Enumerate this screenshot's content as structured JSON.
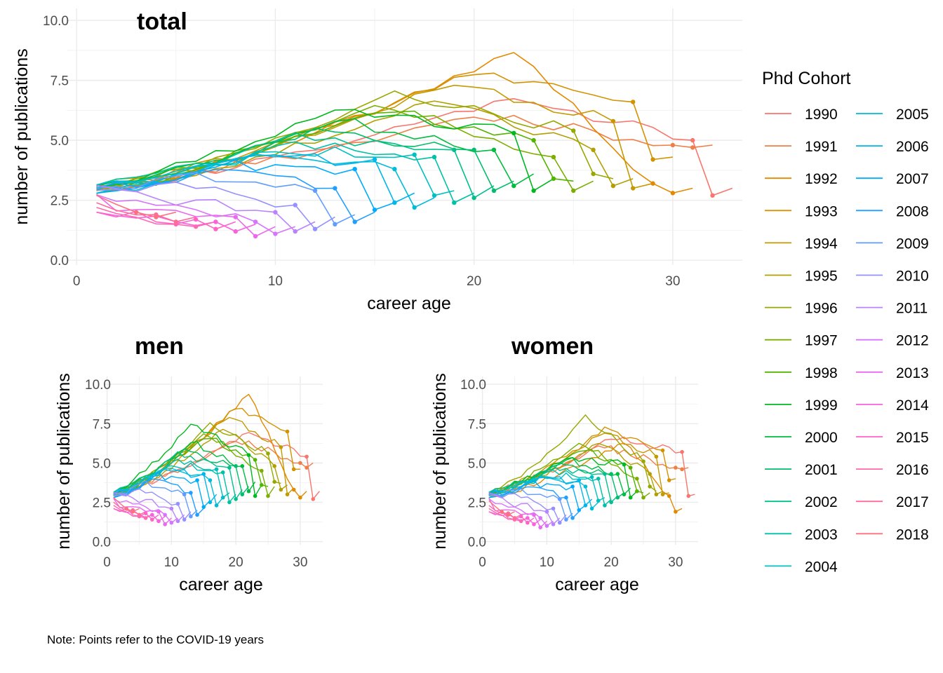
{
  "chart_data": {
    "type": "line",
    "note": "Note: Points refer to the COVID-19 years",
    "legend": {
      "title": "Phd Cohort",
      "placement": "right",
      "cohorts": [
        {
          "label": "1990",
          "color": "#F8766D"
        },
        {
          "label": "1991",
          "color": "#EF7F47"
        },
        {
          "label": "1992",
          "color": "#E38900"
        },
        {
          "label": "1993",
          "color": "#D39200"
        },
        {
          "label": "1994",
          "color": "#C49A00"
        },
        {
          "label": "1995",
          "color": "#B1A000"
        },
        {
          "label": "1996",
          "color": "#99A800"
        },
        {
          "label": "1997",
          "color": "#7CAE00"
        },
        {
          "label": "1998",
          "color": "#53B400"
        },
        {
          "label": "1999",
          "color": "#00B81F"
        },
        {
          "label": "2000",
          "color": "#00BC3F"
        },
        {
          "label": "2001",
          "color": "#00BE6C"
        },
        {
          "label": "2002",
          "color": "#00C08B"
        },
        {
          "label": "2003",
          "color": "#00C1A8"
        },
        {
          "label": "2004",
          "color": "#00C0C0"
        },
        {
          "label": "2005",
          "color": "#00BCD8"
        },
        {
          "label": "2006",
          "color": "#00B6EB"
        },
        {
          "label": "2007",
          "color": "#00ABFD"
        },
        {
          "label": "2008",
          "color": "#1F9FFF"
        },
        {
          "label": "2009",
          "color": "#619CFF"
        },
        {
          "label": "2010",
          "color": "#9590FF"
        },
        {
          "label": "2011",
          "color": "#B983FF"
        },
        {
          "label": "2012",
          "color": "#D774FD"
        },
        {
          "label": "2013",
          "color": "#EC69EF"
        },
        {
          "label": "2014",
          "color": "#F962DD"
        },
        {
          "label": "2015",
          "color": "#FF63C9"
        },
        {
          "label": "2016",
          "color": "#FF67B2"
        },
        {
          "label": "2017",
          "color": "#FF6C98"
        },
        {
          "label": "2018",
          "color": "#FC717F"
        }
      ]
    },
    "panels": [
      {
        "key": "total",
        "title": "total",
        "xlabel": "career age",
        "ylabel": "number of publications",
        "xlim": [
          -0.5,
          33.5
        ],
        "ylim": [
          -0.2,
          10.5
        ],
        "x_ticks": [
          0,
          10,
          20,
          30
        ],
        "y_ticks": [
          0.0,
          2.5,
          5.0,
          7.5,
          10.0
        ],
        "y_tick_labels": [
          "0.0",
          "2.5",
          "5.0",
          "7.5",
          "10.0"
        ],
        "peaks": [
          {
            "age": 22,
            "value": 6.8
          },
          {
            "age": 20,
            "value": 6.1
          },
          {
            "age": 22,
            "value": 8.7
          },
          {
            "age": 20,
            "value": 7.9
          },
          {
            "age": 19,
            "value": 7.4
          },
          {
            "age": 18,
            "value": 6.6
          },
          {
            "age": 16,
            "value": 7.0
          },
          {
            "age": 15,
            "value": 6.6
          },
          {
            "age": 15,
            "value": 6.3
          },
          {
            "age": 13,
            "value": 6.4
          },
          {
            "age": 13,
            "value": 5.9
          },
          {
            "age": 12,
            "value": 5.4
          },
          {
            "age": 11,
            "value": 5.2
          },
          {
            "age": 11,
            "value": 4.9
          },
          {
            "age": 10,
            "value": 4.6
          },
          {
            "age": 9,
            "value": 4.4
          },
          {
            "age": 8,
            "value": 4.2
          },
          {
            "age": 8,
            "value": 4.0
          },
          {
            "age": 7,
            "value": 3.7
          },
          {
            "age": 6,
            "value": 3.5
          },
          {
            "age": 5,
            "value": 3.1
          },
          {
            "age": 4,
            "value": 2.6
          },
          {
            "age": 3,
            "value": 2.4
          },
          {
            "age": 2,
            "value": 2.2
          },
          {
            "age": 1,
            "value": 2.0
          },
          {
            "age": 1,
            "value": 2.0
          },
          {
            "age": 1,
            "value": 2.2
          },
          {
            "age": 1,
            "value": 2.4
          },
          {
            "age": 1,
            "value": 2.7
          }
        ],
        "covid_values": [
          [
            5.0,
            2.7,
            3.0
          ],
          [
            4.8,
            4.7,
            4.8
          ],
          [
            3.2,
            2.8,
            3.0
          ],
          [
            6.6,
            4.2,
            4.3
          ],
          [
            5.8,
            3.0,
            3.2
          ],
          [
            4.6,
            3.1,
            3.4
          ],
          [
            5.4,
            3.6,
            3.4
          ],
          [
            4.3,
            2.9,
            3.3
          ],
          [
            5.0,
            3.4,
            3.3
          ],
          [
            5.3,
            2.9,
            3.4
          ],
          [
            4.6,
            3.1,
            3.6
          ],
          [
            4.6,
            2.9,
            3.3
          ],
          [
            4.6,
            2.6,
            3.1
          ],
          [
            4.3,
            2.4,
            2.8
          ],
          [
            4.4,
            2.7,
            2.9
          ],
          [
            3.8,
            2.2,
            2.6
          ],
          [
            4.2,
            2.4,
            2.8
          ],
          [
            3.8,
            2.1,
            2.4
          ],
          [
            3.0,
            1.6,
            2.0
          ],
          [
            2.9,
            1.5,
            1.9
          ],
          [
            2.3,
            1.3,
            1.8
          ],
          [
            2.0,
            1.2,
            1.6
          ],
          [
            1.6,
            1.1,
            1.4
          ],
          [
            1.8,
            1.0,
            1.4
          ],
          [
            1.6,
            1.2,
            1.5
          ],
          [
            1.7,
            1.3,
            1.6
          ],
          [
            1.5,
            1.4,
            1.6
          ],
          [
            1.9,
            1.6,
            1.8
          ],
          [
            2.0,
            1.8,
            2.0
          ]
        ]
      },
      {
        "key": "men",
        "title": "men",
        "xlabel": "career age",
        "ylabel": "number of publications",
        "xlim": [
          -0.5,
          33.5
        ],
        "ylim": [
          -0.2,
          10.5
        ],
        "x_ticks": [
          0,
          10,
          20,
          30
        ],
        "y_ticks": [
          0.0,
          2.5,
          5.0,
          7.5,
          10.0
        ],
        "y_tick_labels": [
          "0.0",
          "2.5",
          "5.0",
          "7.5",
          "10.0"
        ],
        "peaks": [
          {
            "age": 22,
            "value": 7.0
          },
          {
            "age": 20,
            "value": 6.5
          },
          {
            "age": 22,
            "value": 9.4
          },
          {
            "age": 20,
            "value": 8.6
          },
          {
            "age": 19,
            "value": 8.0
          },
          {
            "age": 18,
            "value": 7.1
          },
          {
            "age": 16,
            "value": 7.5
          },
          {
            "age": 15,
            "value": 7.0
          },
          {
            "age": 15,
            "value": 6.7
          },
          {
            "age": 13,
            "value": 7.6
          },
          {
            "age": 13,
            "value": 6.4
          },
          {
            "age": 12,
            "value": 5.8
          },
          {
            "age": 11,
            "value": 5.6
          },
          {
            "age": 11,
            "value": 5.2
          },
          {
            "age": 10,
            "value": 4.9
          },
          {
            "age": 9,
            "value": 4.7
          },
          {
            "age": 8,
            "value": 4.4
          },
          {
            "age": 8,
            "value": 4.2
          },
          {
            "age": 7,
            "value": 3.9
          },
          {
            "age": 6,
            "value": 3.7
          },
          {
            "age": 5,
            "value": 3.2
          },
          {
            "age": 4,
            "value": 2.8
          },
          {
            "age": 3,
            "value": 2.5
          },
          {
            "age": 2,
            "value": 2.3
          },
          {
            "age": 1,
            "value": 2.1
          },
          {
            "age": 1,
            "value": 2.1
          },
          {
            "age": 1,
            "value": 2.3
          },
          {
            "age": 1,
            "value": 2.5
          },
          {
            "age": 1,
            "value": 2.8
          }
        ],
        "covid_values": [
          [
            5.4,
            2.7,
            3.2
          ],
          [
            5.0,
            4.7,
            5.0
          ],
          [
            3.3,
            2.8,
            3.2
          ],
          [
            7.0,
            4.6,
            4.6
          ],
          [
            6.0,
            3.0,
            3.4
          ],
          [
            4.8,
            3.3,
            3.6
          ],
          [
            5.6,
            3.8,
            3.7
          ],
          [
            4.5,
            2.9,
            3.5
          ],
          [
            5.2,
            3.6,
            3.5
          ],
          [
            5.5,
            2.9,
            3.6
          ],
          [
            4.8,
            3.2,
            3.8
          ],
          [
            4.8,
            3.0,
            3.5
          ],
          [
            4.7,
            2.7,
            3.3
          ],
          [
            4.4,
            2.5,
            3.0
          ],
          [
            4.6,
            2.8,
            3.1
          ],
          [
            3.9,
            2.3,
            2.8
          ],
          [
            4.3,
            2.5,
            3.0
          ],
          [
            3.9,
            2.2,
            2.6
          ],
          [
            3.1,
            1.7,
            2.1
          ],
          [
            3.0,
            1.6,
            2.0
          ],
          [
            2.4,
            1.4,
            1.9
          ],
          [
            2.1,
            1.3,
            1.7
          ],
          [
            1.7,
            1.2,
            1.5
          ],
          [
            1.9,
            1.1,
            1.5
          ],
          [
            1.7,
            1.3,
            1.6
          ],
          [
            1.8,
            1.4,
            1.7
          ],
          [
            1.6,
            1.5,
            1.7
          ],
          [
            2.0,
            1.7,
            1.9
          ],
          [
            2.1,
            1.9,
            2.1
          ]
        ]
      },
      {
        "key": "women",
        "title": "women",
        "xlabel": "career age",
        "ylabel": "number of publications",
        "xlim": [
          -0.5,
          33.5
        ],
        "ylim": [
          -0.2,
          10.5
        ],
        "x_ticks": [
          0,
          10,
          20,
          30
        ],
        "y_ticks": [
          0.0,
          2.5,
          5.0,
          7.5,
          10.0
        ],
        "y_tick_labels": [
          "0.0",
          "2.5",
          "5.0",
          "7.5",
          "10.0"
        ],
        "peaks": [
          {
            "age": 20,
            "value": 6.6
          },
          {
            "age": 18,
            "value": 6.1
          },
          {
            "age": 22,
            "value": 6.3
          },
          {
            "age": 19,
            "value": 7.2
          },
          {
            "age": 19,
            "value": 7.0
          },
          {
            "age": 18,
            "value": 6.2
          },
          {
            "age": 16,
            "value": 8.0
          },
          {
            "age": 15,
            "value": 6.4
          },
          {
            "age": 15,
            "value": 5.9
          },
          {
            "age": 13,
            "value": 5.4
          },
          {
            "age": 13,
            "value": 5.3
          },
          {
            "age": 12,
            "value": 4.9
          },
          {
            "age": 11,
            "value": 4.7
          },
          {
            "age": 11,
            "value": 4.5
          },
          {
            "age": 10,
            "value": 4.2
          },
          {
            "age": 9,
            "value": 4.1
          },
          {
            "age": 8,
            "value": 3.9
          },
          {
            "age": 8,
            "value": 3.7
          },
          {
            "age": 7,
            "value": 3.4
          },
          {
            "age": 6,
            "value": 3.2
          },
          {
            "age": 5,
            "value": 2.9
          },
          {
            "age": 4,
            "value": 2.5
          },
          {
            "age": 3,
            "value": 2.3
          },
          {
            "age": 2,
            "value": 2.1
          },
          {
            "age": 1,
            "value": 1.9
          },
          {
            "age": 1,
            "value": 1.9
          },
          {
            "age": 1,
            "value": 2.1
          },
          {
            "age": 1,
            "value": 2.3
          },
          {
            "age": 1,
            "value": 2.6
          }
        ],
        "covid_values": [
          [
            5.7,
            2.9,
            3.0
          ],
          [
            4.7,
            4.6,
            4.7
          ],
          [
            2.9,
            1.9,
            2.1
          ],
          [
            5.8,
            3.9,
            4.0
          ],
          [
            5.4,
            3.0,
            3.1
          ],
          [
            4.3,
            3.0,
            3.2
          ],
          [
            5.1,
            3.5,
            3.2
          ],
          [
            4.0,
            2.8,
            3.1
          ],
          [
            4.7,
            3.2,
            3.1
          ],
          [
            4.9,
            2.8,
            3.2
          ],
          [
            4.3,
            3.0,
            3.4
          ],
          [
            4.3,
            2.8,
            3.1
          ],
          [
            4.3,
            2.5,
            2.9
          ],
          [
            4.0,
            2.3,
            2.7
          ],
          [
            4.1,
            2.6,
            2.8
          ],
          [
            3.5,
            2.1,
            2.5
          ],
          [
            3.9,
            2.3,
            2.7
          ],
          [
            3.5,
            2.0,
            2.3
          ],
          [
            2.8,
            1.5,
            1.9
          ],
          [
            2.7,
            1.4,
            1.8
          ],
          [
            2.1,
            1.2,
            1.7
          ],
          [
            1.9,
            1.1,
            1.5
          ],
          [
            1.5,
            1.0,
            1.3
          ],
          [
            1.7,
            0.9,
            1.3
          ],
          [
            1.5,
            1.1,
            1.4
          ],
          [
            1.6,
            1.2,
            1.5
          ],
          [
            1.4,
            1.3,
            1.5
          ],
          [
            1.8,
            1.5,
            1.7
          ],
          [
            1.9,
            1.7,
            1.9
          ]
        ]
      }
    ]
  }
}
